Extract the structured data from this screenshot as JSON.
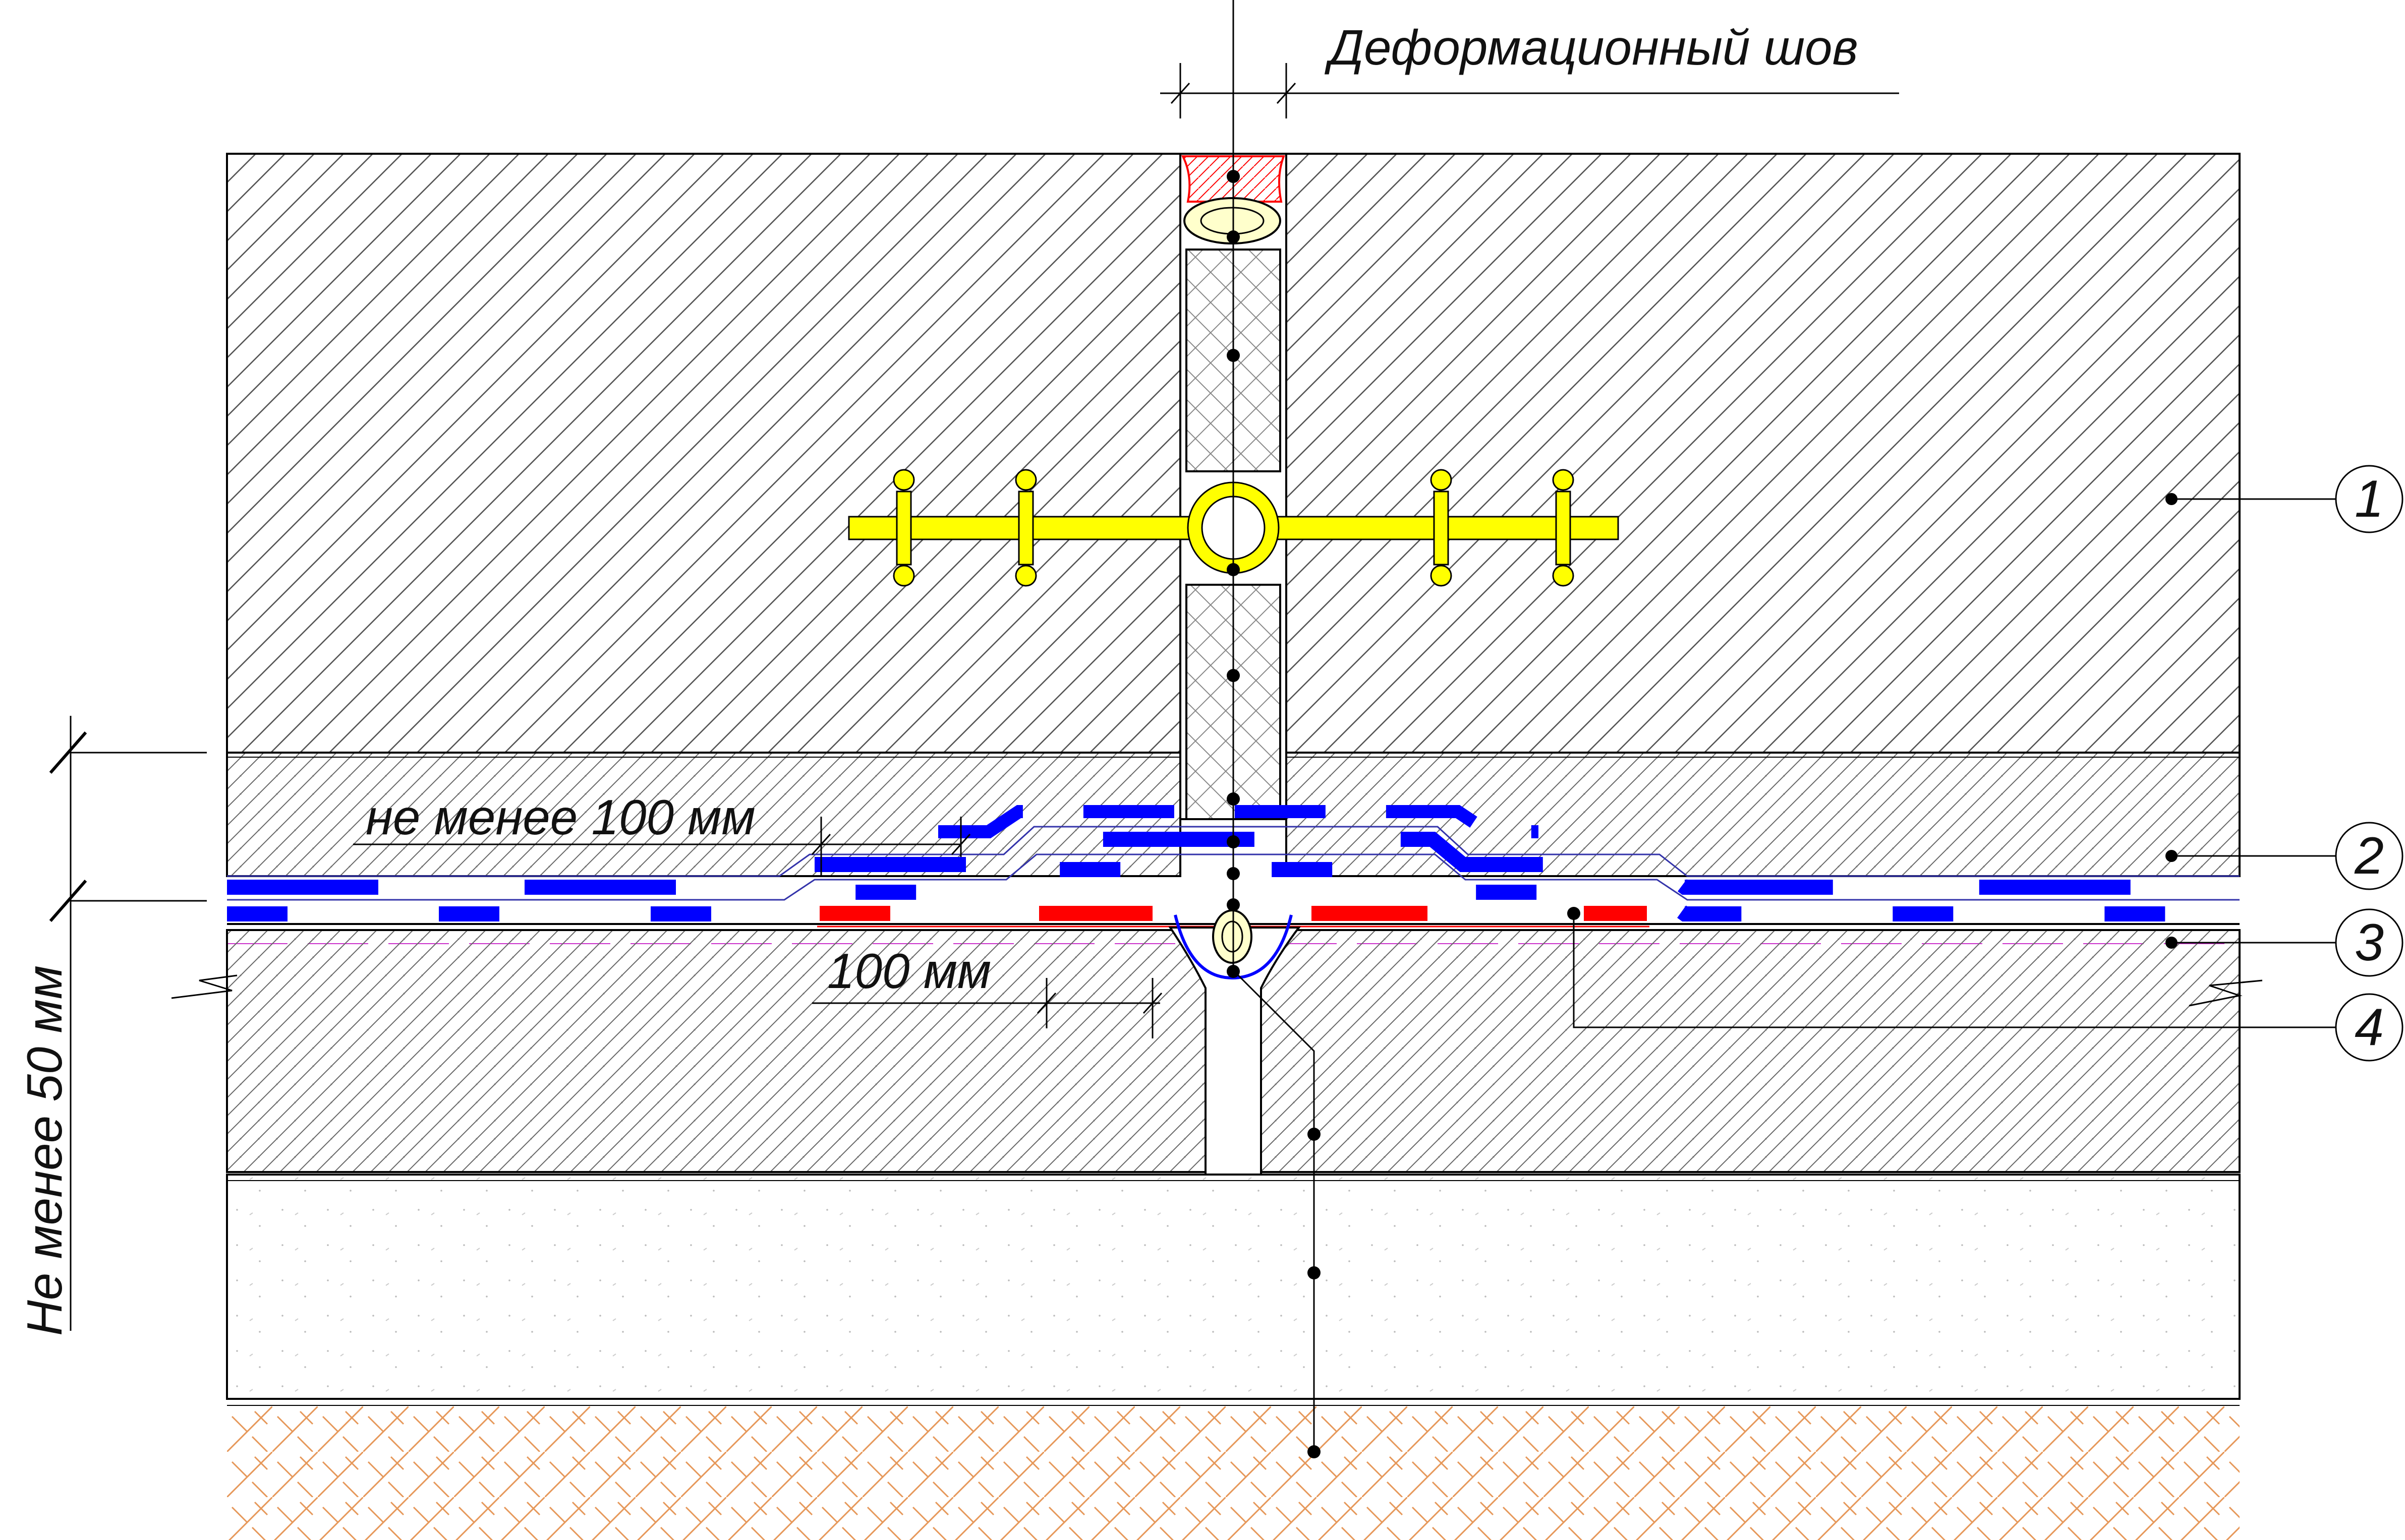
{
  "labels": {
    "joint_title": "Деформационный шов",
    "overlap_top": "не менее 100 мм",
    "overlap_bottom": "100 мм",
    "min_thickness": "Не менее 50 мм"
  },
  "callouts": [
    {
      "number": "1"
    },
    {
      "number": "2"
    },
    {
      "number": "3"
    },
    {
      "number": "4"
    }
  ],
  "colors": {
    "waterstop": "#ffff00",
    "membrane_blue": "#0000ff",
    "tape_red": "#ff0000",
    "cord": "#ffffcc",
    "sealant_hatch": "#ff0000",
    "soil_hatch": "#e6985a",
    "lines": "#000000"
  }
}
